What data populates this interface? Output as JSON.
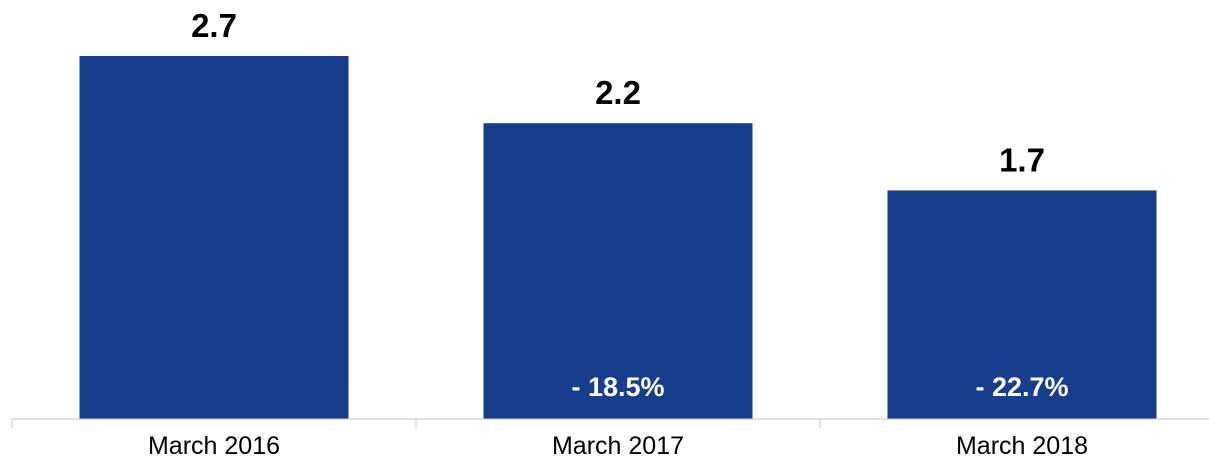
{
  "chart_data": {
    "type": "bar",
    "title": "",
    "xlabel": "",
    "ylabel": "",
    "categories": [
      "March 2016",
      "March 2017",
      "March 2018"
    ],
    "values": [
      2.7,
      2.2,
      1.7
    ],
    "value_labels": [
      "2.7",
      "2.2",
      "1.7"
    ],
    "change_labels": [
      "",
      "- 18.5%",
      "- 22.7%"
    ],
    "ylim": [
      0,
      3.05
    ],
    "grid": false,
    "legend": "none",
    "bar_color": "#163e8c",
    "axis_color": "#c8c8c8"
  }
}
